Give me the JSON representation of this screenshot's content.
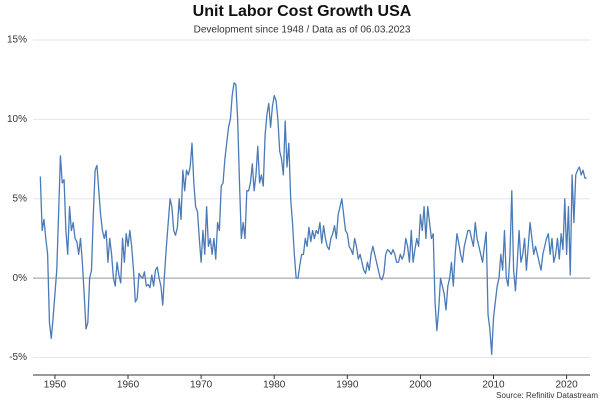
{
  "chart_data": {
    "type": "line",
    "title": "Unit Labor Cost Growth USA",
    "subtitle": "Development since 1948 / Data as of 06.03.2023",
    "source": "Source: Refinitiv Datastream",
    "x": [
      1948,
      1948.25,
      1948.5,
      1948.75,
      1949,
      1949.25,
      1949.5,
      1949.75,
      1950,
      1950.25,
      1950.5,
      1950.75,
      1951,
      1951.25,
      1951.5,
      1951.75,
      1952,
      1952.25,
      1952.5,
      1952.75,
      1953,
      1953.25,
      1953.5,
      1953.75,
      1954,
      1954.25,
      1954.5,
      1954.75,
      1955,
      1955.25,
      1955.5,
      1955.75,
      1956,
      1956.25,
      1956.5,
      1956.75,
      1957,
      1957.25,
      1957.5,
      1957.75,
      1958,
      1958.25,
      1958.5,
      1958.75,
      1959,
      1959.25,
      1959.5,
      1959.75,
      1960,
      1960.25,
      1960.5,
      1960.75,
      1961,
      1961.25,
      1961.5,
      1961.75,
      1962,
      1962.25,
      1962.5,
      1962.75,
      1963,
      1963.25,
      1963.5,
      1963.75,
      1964,
      1964.25,
      1964.5,
      1964.75,
      1965,
      1965.25,
      1965.5,
      1965.75,
      1966,
      1966.25,
      1966.5,
      1966.75,
      1967,
      1967.25,
      1967.5,
      1967.75,
      1968,
      1968.25,
      1968.5,
      1968.75,
      1969,
      1969.25,
      1969.5,
      1969.75,
      1970,
      1970.25,
      1970.5,
      1970.75,
      1971,
      1971.25,
      1971.5,
      1971.75,
      1972,
      1972.25,
      1972.5,
      1972.75,
      1973,
      1973.25,
      1973.5,
      1973.75,
      1974,
      1974.25,
      1974.5,
      1974.75,
      1975,
      1975.25,
      1975.5,
      1975.75,
      1976,
      1976.25,
      1976.5,
      1976.75,
      1977,
      1977.25,
      1977.5,
      1977.75,
      1978,
      1978.25,
      1978.5,
      1978.75,
      1979,
      1979.25,
      1979.5,
      1979.75,
      1980,
      1980.25,
      1980.5,
      1980.75,
      1981,
      1981.25,
      1981.5,
      1981.75,
      1982,
      1982.25,
      1982.5,
      1982.75,
      1983,
      1983.25,
      1983.5,
      1983.75,
      1984,
      1984.25,
      1984.5,
      1984.75,
      1985,
      1985.25,
      1985.5,
      1985.75,
      1986,
      1986.25,
      1986.5,
      1986.75,
      1987,
      1987.25,
      1987.5,
      1987.75,
      1988,
      1988.25,
      1988.5,
      1988.75,
      1989,
      1989.25,
      1989.5,
      1989.75,
      1990,
      1990.25,
      1990.5,
      1990.75,
      1991,
      1991.25,
      1991.5,
      1991.75,
      1992,
      1992.25,
      1992.5,
      1992.75,
      1993,
      1993.25,
      1993.5,
      1993.75,
      1994,
      1994.25,
      1994.5,
      1994.75,
      1995,
      1995.25,
      1995.5,
      1995.75,
      1996,
      1996.25,
      1996.5,
      1996.75,
      1997,
      1997.25,
      1997.5,
      1997.75,
      1998,
      1998.25,
      1998.5,
      1998.75,
      1999,
      1999.25,
      1999.5,
      1999.75,
      2000,
      2000.25,
      2000.5,
      2000.75,
      2001,
      2001.25,
      2001.5,
      2001.75,
      2002,
      2002.25,
      2002.5,
      2002.75,
      2003,
      2003.25,
      2003.5,
      2003.75,
      2004,
      2004.25,
      2004.5,
      2004.75,
      2005,
      2005.25,
      2005.5,
      2005.75,
      2006,
      2006.25,
      2006.5,
      2006.75,
      2007,
      2007.25,
      2007.5,
      2007.75,
      2008,
      2008.25,
      2008.5,
      2008.75,
      2009,
      2009.25,
      2009.5,
      2009.75,
      2010,
      2010.25,
      2010.5,
      2010.75,
      2011,
      2011.25,
      2011.5,
      2011.75,
      2012,
      2012.25,
      2012.5,
      2012.75,
      2013,
      2013.25,
      2013.5,
      2013.75,
      2014,
      2014.25,
      2014.5,
      2014.75,
      2015,
      2015.25,
      2015.5,
      2015.75,
      2016,
      2016.25,
      2016.5,
      2016.75,
      2017,
      2017.25,
      2017.5,
      2017.75,
      2018,
      2018.25,
      2018.5,
      2018.75,
      2019,
      2019.25,
      2019.5,
      2019.75,
      2020,
      2020.25,
      2020.5,
      2020.75,
      2021,
      2021.25,
      2021.5,
      2021.75,
      2022,
      2022.25,
      2022.5,
      2022.75
    ],
    "series": [
      {
        "color": "#4a7ab8",
        "values": [
          6.4,
          3.0,
          3.7,
          2.5,
          1.5,
          -2.8,
          -3.8,
          -2.5,
          -1.0,
          0.5,
          4.0,
          7.7,
          6.0,
          6.2,
          3.0,
          1.5,
          4.5,
          3.0,
          3.5,
          2.5,
          2.3,
          1.5,
          2.5,
          1.0,
          -1.0,
          -3.2,
          -2.8,
          0.0,
          0.5,
          4.0,
          6.8,
          7.1,
          5.5,
          4.0,
          3.0,
          2.5,
          3.0,
          1.0,
          2.5,
          1.5,
          0.0,
          -0.5,
          1.0,
          0.2,
          -0.3,
          2.5,
          1.0,
          2.8,
          2.0,
          3.0,
          2.0,
          0.5,
          -1.5,
          -1.3,
          0.3,
          0.1,
          0.0,
          0.4,
          -0.5,
          -0.4,
          -0.6,
          0.2,
          -0.5,
          0.5,
          0.7,
          0.0,
          -0.5,
          -1.7,
          0.3,
          2.0,
          3.5,
          5.0,
          4.5,
          3.0,
          2.7,
          3.2,
          5.0,
          3.7,
          6.8,
          5.5,
          6.8,
          6.5,
          7.0,
          8.5,
          6.0,
          4.5,
          4.2,
          2.5,
          1.0,
          3.0,
          1.5,
          4.5,
          2.0,
          2.5,
          1.5,
          2.5,
          1.2,
          3.5,
          3.0,
          5.8,
          6.0,
          7.5,
          8.5,
          9.5,
          10.0,
          11.5,
          12.3,
          12.2,
          10.0,
          6.0,
          2.5,
          3.5,
          2.5,
          5.5,
          5.5,
          6.0,
          7.2,
          5.5,
          6.5,
          8.3,
          6.0,
          6.5,
          5.8,
          9.0,
          10.3,
          11.0,
          9.5,
          10.8,
          11.5,
          11.2,
          10.0,
          8.0,
          7.5,
          6.5,
          9.9,
          7.0,
          8.5,
          5.0,
          3.5,
          1.5,
          0.0,
          0.0,
          0.8,
          1.5,
          1.5,
          2.5,
          2.0,
          3.2,
          2.3,
          3.0,
          2.5,
          3.0,
          2.8,
          3.5,
          2.2,
          3.3,
          2.5,
          2.0,
          1.8,
          2.5,
          2.8,
          3.3,
          2.5,
          4.0,
          4.5,
          5.0,
          4.0,
          3.0,
          2.8,
          2.0,
          1.8,
          1.5,
          2.5,
          2.0,
          1.2,
          1.5,
          1.0,
          0.5,
          0.3,
          1.0,
          0.5,
          1.5,
          2.0,
          1.5,
          1.0,
          0.5,
          0.0,
          -0.1,
          0.3,
          1.5,
          1.8,
          1.7,
          1.5,
          1.8,
          1.5,
          1.0,
          1.0,
          1.5,
          1.2,
          1.5,
          2.5,
          2.0,
          1.0,
          3.0,
          1.0,
          1.8,
          2.5,
          2.0,
          4.0,
          3.0,
          4.5,
          2.5,
          4.5,
          3.5,
          2.5,
          2.8,
          -1.5,
          -3.3,
          -2.0,
          0.0,
          -0.5,
          -1.0,
          -2.0,
          -0.5,
          0.0,
          1.0,
          -0.5,
          1.5,
          2.8,
          2.2,
          1.5,
          1.0,
          2.0,
          2.5,
          3.0,
          3.0,
          2.5,
          2.0,
          3.5,
          2.5,
          2.0,
          1.5,
          1.0,
          2.0,
          2.9,
          -2.3,
          -3.2,
          -4.8,
          -2.5,
          -1.5,
          -0.5,
          0.0,
          1.5,
          0.5,
          3.0,
          0.0,
          -0.5,
          1.5,
          5.5,
          0.5,
          -0.8,
          1.0,
          3.0,
          1.0,
          1.5,
          2.5,
          0.5,
          2.0,
          3.5,
          2.5,
          1.5,
          2.0,
          1.5,
          1.0,
          0.5,
          1.5,
          2.0,
          2.5,
          2.8,
          1.5,
          2.5,
          1.0,
          1.5,
          2.5,
          1.2,
          2.8,
          1.8,
          5.0,
          1.5,
          4.5,
          0.2,
          6.5,
          3.5,
          6.5,
          6.8,
          7.0,
          6.5,
          6.8,
          6.3,
          6.3
        ]
      }
    ],
    "xlim": [
      1947,
      2023.2
    ],
    "xticks": [
      1950,
      1960,
      1970,
      1980,
      1990,
      2000,
      2010,
      2020
    ],
    "ylim": [
      -6.1,
      15
    ],
    "yticks": [
      {
        "value": -5,
        "label": "-5%"
      },
      {
        "value": 0,
        "label": "0%"
      },
      {
        "value": 5,
        "label": "5%"
      },
      {
        "value": 10,
        "label": "10%"
      },
      {
        "value": 15,
        "label": "15%"
      }
    ],
    "grid": true
  }
}
